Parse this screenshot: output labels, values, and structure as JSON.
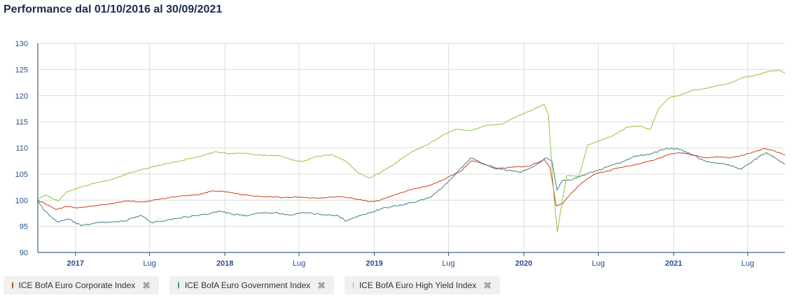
{
  "title": "Performance dal 01/10/2016 al 30/09/2021",
  "chart_data": {
    "type": "line",
    "y_ticks": [
      90,
      95,
      100,
      105,
      110,
      115,
      120,
      125,
      130
    ],
    "ylim": [
      90,
      130
    ],
    "x_range": [
      "2016-10-01",
      "2021-09-30"
    ],
    "x_ticks": [
      {
        "date": "2017-01-01",
        "label": "2017",
        "bold": true
      },
      {
        "date": "2017-07-01",
        "label": "Lug",
        "bold": false
      },
      {
        "date": "2018-01-01",
        "label": "2018",
        "bold": true
      },
      {
        "date": "2018-07-01",
        "label": "Lug",
        "bold": false
      },
      {
        "date": "2019-01-01",
        "label": "2019",
        "bold": true
      },
      {
        "date": "2019-07-01",
        "label": "Lug",
        "bold": false
      },
      {
        "date": "2020-01-01",
        "label": "2020",
        "bold": true
      },
      {
        "date": "2020-07-01",
        "label": "Lug",
        "bold": false
      },
      {
        "date": "2021-01-01",
        "label": "2021",
        "bold": true
      },
      {
        "date": "2021-07-01",
        "label": "Lug",
        "bold": false
      }
    ],
    "grid": true,
    "series": [
      {
        "name": "ICE BofA Euro Corporate Index",
        "color": "#c8421b",
        "points": [
          [
            "2016-10-01",
            100
          ],
          [
            "2016-10-20",
            99.3
          ],
          [
            "2016-11-15",
            98.2
          ],
          [
            "2016-12-10",
            98.8
          ],
          [
            "2017-01-05",
            98.5
          ],
          [
            "2017-02-15",
            98.9
          ],
          [
            "2017-03-20",
            99.2
          ],
          [
            "2017-05-01",
            99.8
          ],
          [
            "2017-06-20",
            99.7
          ],
          [
            "2017-08-01",
            100.3
          ],
          [
            "2017-09-15",
            100.8
          ],
          [
            "2017-11-01",
            101.1
          ],
          [
            "2017-12-01",
            101.8
          ],
          [
            "2018-01-10",
            101.5
          ],
          [
            "2018-02-15",
            101.0
          ],
          [
            "2018-04-01",
            100.7
          ],
          [
            "2018-05-25",
            100.5
          ],
          [
            "2018-07-01",
            100.6
          ],
          [
            "2018-08-15",
            100.4
          ],
          [
            "2018-10-10",
            100.7
          ],
          [
            "2018-11-20",
            100.2
          ],
          [
            "2018-12-20",
            99.7
          ],
          [
            "2019-01-15",
            100.0
          ],
          [
            "2019-02-15",
            100.9
          ],
          [
            "2019-04-01",
            102.0
          ],
          [
            "2019-05-20",
            102.9
          ],
          [
            "2019-06-20",
            104.0
          ],
          [
            "2019-08-01",
            105.6
          ],
          [
            "2019-08-25",
            107.5
          ],
          [
            "2019-09-15",
            107.2
          ],
          [
            "2019-10-25",
            106.0
          ],
          [
            "2019-12-01",
            106.3
          ],
          [
            "2020-01-15",
            106.5
          ],
          [
            "2020-02-20",
            107.8
          ],
          [
            "2020-03-05",
            106.3
          ],
          [
            "2020-03-20",
            98.9
          ],
          [
            "2020-04-05",
            99.3
          ],
          [
            "2020-04-25",
            101.3
          ],
          [
            "2020-05-25",
            103.5
          ],
          [
            "2020-06-25",
            105.1
          ],
          [
            "2020-07-25",
            105.6
          ],
          [
            "2020-08-25",
            106.3
          ],
          [
            "2020-10-05",
            106.9
          ],
          [
            "2020-11-15",
            107.7
          ],
          [
            "2020-12-15",
            108.6
          ],
          [
            "2021-01-15",
            109.1
          ],
          [
            "2021-02-15",
            108.6
          ],
          [
            "2021-03-20",
            108.1
          ],
          [
            "2021-04-20",
            108.3
          ],
          [
            "2021-05-20",
            108.1
          ],
          [
            "2021-06-20",
            108.6
          ],
          [
            "2021-07-20",
            109.3
          ],
          [
            "2021-08-10",
            109.9
          ],
          [
            "2021-09-01",
            109.5
          ],
          [
            "2021-09-30",
            108.7
          ]
        ]
      },
      {
        "name": "ICE BofA Euro Government Index",
        "color": "#3f7f89",
        "points": [
          [
            "2016-10-01",
            100
          ],
          [
            "2016-10-15",
            98.2
          ],
          [
            "2016-11-01",
            96.9
          ],
          [
            "2016-11-20",
            95.8
          ],
          [
            "2016-12-15",
            96.4
          ],
          [
            "2017-01-15",
            95.1
          ],
          [
            "2017-02-15",
            95.6
          ],
          [
            "2017-03-20",
            95.8
          ],
          [
            "2017-05-01",
            96.0
          ],
          [
            "2017-06-10",
            97.1
          ],
          [
            "2017-07-05",
            95.7
          ],
          [
            "2017-08-20",
            96.3
          ],
          [
            "2017-10-01",
            96.8
          ],
          [
            "2017-11-15",
            97.3
          ],
          [
            "2017-12-20",
            97.9
          ],
          [
            "2018-01-20",
            97.3
          ],
          [
            "2018-02-25",
            97.0
          ],
          [
            "2018-04-01",
            97.6
          ],
          [
            "2018-05-01",
            97.6
          ],
          [
            "2018-06-15",
            97.2
          ],
          [
            "2018-07-15",
            97.6
          ],
          [
            "2018-08-20",
            97.3
          ],
          [
            "2018-10-01",
            97.1
          ],
          [
            "2018-10-25",
            96.0
          ],
          [
            "2018-11-20",
            96.8
          ],
          [
            "2018-12-20",
            97.6
          ],
          [
            "2019-01-20",
            98.4
          ],
          [
            "2019-02-25",
            98.9
          ],
          [
            "2019-04-01",
            99.5
          ],
          [
            "2019-05-20",
            100.6
          ],
          [
            "2019-06-20",
            102.7
          ],
          [
            "2019-07-20",
            105.1
          ],
          [
            "2019-08-25",
            108.1
          ],
          [
            "2019-09-20",
            107.1
          ],
          [
            "2019-10-25",
            106.2
          ],
          [
            "2019-11-25",
            105.7
          ],
          [
            "2019-12-25",
            105.3
          ],
          [
            "2020-02-01",
            106.8
          ],
          [
            "2020-02-25",
            108.1
          ],
          [
            "2020-03-10",
            107.5
          ],
          [
            "2020-03-22",
            101.9
          ],
          [
            "2020-04-05",
            103.8
          ],
          [
            "2020-04-25",
            103.8
          ],
          [
            "2020-05-25",
            104.8
          ],
          [
            "2020-06-25",
            105.6
          ],
          [
            "2020-07-25",
            106.4
          ],
          [
            "2020-08-25",
            107.2
          ],
          [
            "2020-10-01",
            108.4
          ],
          [
            "2020-11-10",
            108.9
          ],
          [
            "2020-12-15",
            110.0
          ],
          [
            "2021-01-15",
            109.7
          ],
          [
            "2021-02-15",
            108.7
          ],
          [
            "2021-03-15",
            107.6
          ],
          [
            "2021-04-15",
            107.1
          ],
          [
            "2021-05-15",
            106.8
          ],
          [
            "2021-06-15",
            105.9
          ],
          [
            "2021-07-15",
            107.6
          ],
          [
            "2021-08-15",
            109.1
          ],
          [
            "2021-09-10",
            107.9
          ],
          [
            "2021-09-30",
            106.9
          ]
        ]
      },
      {
        "name": "ICE BofA Euro High Yield Index",
        "color": "#8cc63e",
        "points": [
          [
            "2016-10-01",
            100.3
          ],
          [
            "2016-10-20",
            101.0
          ],
          [
            "2016-11-20",
            99.8
          ],
          [
            "2016-12-10",
            101.6
          ],
          [
            "2017-01-15",
            102.5
          ],
          [
            "2017-02-20",
            103.3
          ],
          [
            "2017-04-01",
            104.0
          ],
          [
            "2017-05-15",
            105.3
          ],
          [
            "2017-06-20",
            106.0
          ],
          [
            "2017-08-01",
            106.8
          ],
          [
            "2017-09-15",
            107.5
          ],
          [
            "2017-11-01",
            108.4
          ],
          [
            "2017-12-10",
            109.3
          ],
          [
            "2018-01-10",
            108.9
          ],
          [
            "2018-02-15",
            109.0
          ],
          [
            "2018-04-01",
            108.6
          ],
          [
            "2018-05-15",
            108.5
          ],
          [
            "2018-06-15",
            107.7
          ],
          [
            "2018-07-10",
            107.4
          ],
          [
            "2018-08-10",
            108.3
          ],
          [
            "2018-09-20",
            108.7
          ],
          [
            "2018-10-25",
            107.4
          ],
          [
            "2018-11-20",
            105.4
          ],
          [
            "2018-12-20",
            104.2
          ],
          [
            "2019-01-20",
            105.5
          ],
          [
            "2019-02-20",
            107.0
          ],
          [
            "2019-04-01",
            109.2
          ],
          [
            "2019-05-15",
            110.8
          ],
          [
            "2019-06-20",
            112.6
          ],
          [
            "2019-07-20",
            113.6
          ],
          [
            "2019-08-25",
            113.3
          ],
          [
            "2019-10-01",
            114.3
          ],
          [
            "2019-11-10",
            114.6
          ],
          [
            "2019-12-20",
            116.2
          ],
          [
            "2020-01-20",
            117.2
          ],
          [
            "2020-02-20",
            118.3
          ],
          [
            "2020-03-01",
            116.4
          ],
          [
            "2020-03-15",
            100.2
          ],
          [
            "2020-03-23",
            93.9
          ],
          [
            "2020-04-01",
            98.5
          ],
          [
            "2020-04-15",
            104.7
          ],
          [
            "2020-05-15",
            104.6
          ],
          [
            "2020-06-05",
            110.6
          ],
          [
            "2020-07-05",
            111.4
          ],
          [
            "2020-08-05",
            112.3
          ],
          [
            "2020-09-10",
            114.0
          ],
          [
            "2020-10-10",
            114.2
          ],
          [
            "2020-11-05",
            113.5
          ],
          [
            "2020-11-25",
            117.5
          ],
          [
            "2020-12-20",
            119.5
          ],
          [
            "2021-01-20",
            120.2
          ],
          [
            "2021-02-20",
            121.1
          ],
          [
            "2021-03-20",
            121.4
          ],
          [
            "2021-04-20",
            122.0
          ],
          [
            "2021-05-20",
            122.4
          ],
          [
            "2021-06-20",
            123.5
          ],
          [
            "2021-07-20",
            123.9
          ],
          [
            "2021-08-20",
            124.6
          ],
          [
            "2021-09-15",
            124.9
          ],
          [
            "2021-09-30",
            124.3
          ]
        ]
      }
    ]
  },
  "legend": [
    {
      "label": "ICE BofA Euro Corporate Index",
      "color": "#c8421b",
      "close": "✖"
    },
    {
      "label": "ICE BofA Euro Government Index",
      "color": "#3f7f89",
      "close": "✖"
    },
    {
      "label": "ICE BofA Euro High Yield Index",
      "color": "#8cc63e",
      "close": "✖"
    }
  ]
}
